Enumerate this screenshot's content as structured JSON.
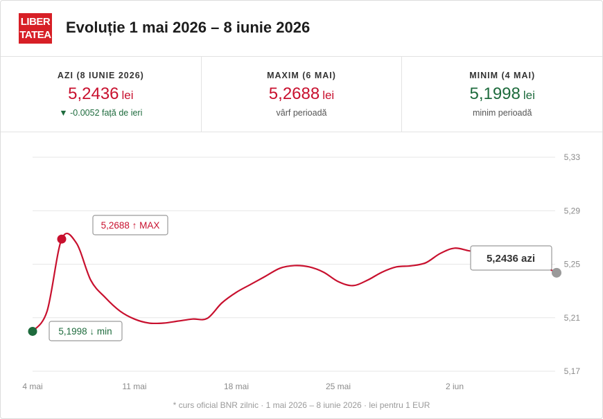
{
  "header": {
    "logo_line1": "LIBER",
    "logo_line2": "TATEA",
    "title": "Evoluție 1 mai 2026 – 8 iunie 2026"
  },
  "stats": [
    {
      "label": "AZI (8 IUNIE 2026)",
      "value": "5,2436",
      "unit": "lei",
      "note_arrow": "▼",
      "note": "-0.0052 față de ieri",
      "color": "#c8102e"
    },
    {
      "label": "MAXIM (6 MAI)",
      "value": "5,2688",
      "unit": "lei",
      "note": "vârf perioadă",
      "color": "#c8102e"
    },
    {
      "label": "MINIM (4 MAI)",
      "value": "5,1998",
      "unit": "lei",
      "note": "minim perioadă",
      "color": "#1e6b3d"
    }
  ],
  "chart_data": {
    "type": "line",
    "y_ticks": [
      "5,33",
      "5,29",
      "5,25",
      "5,21",
      "5,17"
    ],
    "y_tick_values": [
      5.33,
      5.29,
      5.25,
      5.21,
      5.17
    ],
    "ylim": [
      5.17,
      5.33
    ],
    "x_ticks": [
      "4 mai",
      "11 mai",
      "18 mai",
      "25 mai",
      "2 iun"
    ],
    "x_tick_days": [
      4,
      11,
      18,
      25,
      33
    ],
    "xlim": [
      4,
      40
    ],
    "grid": true,
    "line_color": "#c8102e",
    "series": [
      {
        "x": [
          4,
          5,
          6,
          7,
          8,
          9,
          10,
          11,
          12,
          13,
          14,
          15,
          16,
          17,
          18,
          19,
          20,
          21,
          22,
          23,
          24,
          25,
          26,
          27,
          28,
          29,
          30,
          31,
          32,
          33,
          34,
          35,
          36,
          37,
          38,
          39,
          40
        ],
        "values": [
          5.1998,
          5.215,
          5.2688,
          5.266,
          5.238,
          5.225,
          5.215,
          5.209,
          5.206,
          5.206,
          5.2075,
          5.209,
          5.2095,
          5.221,
          5.229,
          5.235,
          5.241,
          5.247,
          5.249,
          5.248,
          5.244,
          5.237,
          5.234,
          5.238,
          5.244,
          5.248,
          5.2488,
          5.251,
          5.258,
          5.262,
          5.26,
          5.259,
          5.256,
          5.253,
          5.251,
          5.2488,
          5.2436
        ]
      }
    ],
    "annotations": {
      "max_label": "5,2688 ↑ MAX",
      "min_label": "5,1998 ↓ min",
      "today_label": "5,2436 azi",
      "max_x": 6,
      "max_y": 5.2688,
      "min_x": 4,
      "min_y": 5.1998,
      "today_x": 40,
      "today_y": 5.2436
    }
  },
  "footnote": "* curs oficial BNR zilnic · 1 mai 2026 – 8 iunie 2026 · lei pentru 1 EUR"
}
